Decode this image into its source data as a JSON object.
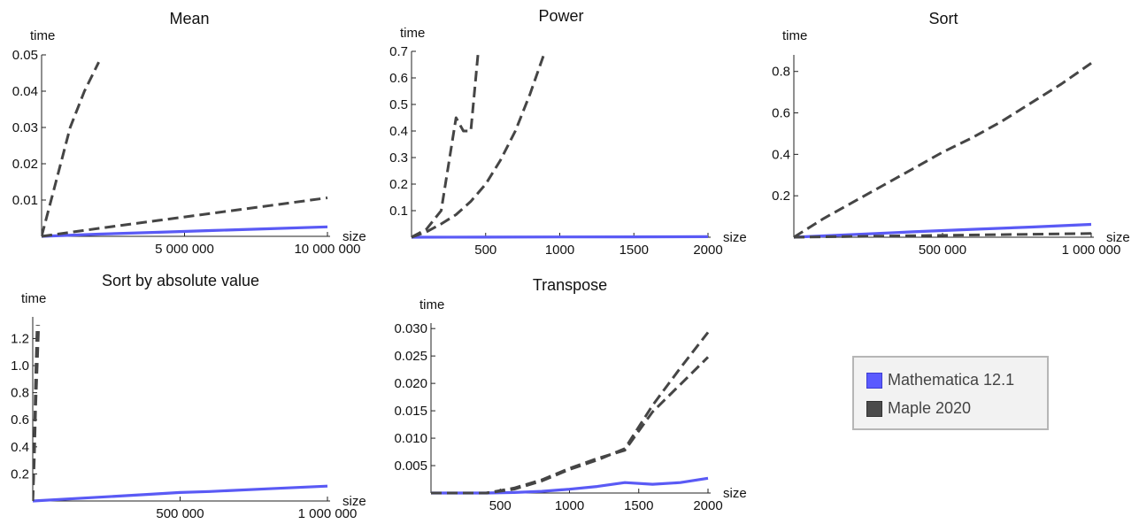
{
  "colors": {
    "mathematica": "#5a5af5",
    "maple": "#454545",
    "axis": "#222222",
    "background": "#ffffff"
  },
  "legend": {
    "items": [
      {
        "label": "Mathematica 12.1",
        "color": "#5a5af5"
      },
      {
        "label": "Maple 2020",
        "color": "#4b4b4b"
      }
    ]
  },
  "chart_data": [
    {
      "type": "line",
      "title": "Mean",
      "xlabel": "size",
      "ylabel": "time",
      "xlim": [
        0,
        10000000
      ],
      "ylim": [
        0,
        0.05
      ],
      "xticks": [
        5000000,
        10000000
      ],
      "xtick_labels": [
        "5 000 000",
        "10 000 000"
      ],
      "yticks": [
        0.01,
        0.02,
        0.03,
        0.04,
        0.05
      ],
      "ytick_labels": [
        "0.01",
        "0.02",
        "0.03",
        "0.04",
        "0.05"
      ],
      "series": [
        {
          "x": [
            0,
            2000000,
            4000000,
            6000000,
            8000000,
            10000000
          ],
          "y": [
            0,
            0.0006,
            0.0011,
            0.0016,
            0.0021,
            0.0026
          ]
        },
        {
          "x": [
            0,
            2000000,
            4000000,
            6000000,
            8000000,
            10000000
          ],
          "y": [
            0,
            0.0022,
            0.0043,
            0.0064,
            0.0085,
            0.0106
          ]
        },
        {
          "x": [
            0,
            500000,
            1000000,
            1500000,
            2000000
          ],
          "y": [
            0,
            0.015,
            0.03,
            0.04,
            0.048
          ]
        }
      ]
    },
    {
      "type": "line",
      "title": "Power",
      "xlabel": "size",
      "ylabel": "time",
      "xlim": [
        0,
        2000
      ],
      "ylim": [
        0,
        0.7
      ],
      "xticks": [
        500,
        1000,
        1500,
        2000
      ],
      "xtick_labels": [
        "500",
        "1000",
        "1500",
        "2000"
      ],
      "yticks": [
        0.1,
        0.2,
        0.3,
        0.4,
        0.5,
        0.6,
        0.7
      ],
      "ytick_labels": [
        "0.1",
        "0.2",
        "0.3",
        "0.4",
        "0.5",
        "0.6",
        "0.7"
      ],
      "series": [
        {
          "x": [
            0,
            500,
            1000,
            1500,
            2000
          ],
          "y": [
            0,
            0.0005,
            0.001,
            0.0015,
            0.002
          ]
        },
        {
          "x": [
            0,
            100,
            200,
            300,
            400,
            500,
            600,
            700,
            800,
            900
          ],
          "y": [
            0,
            0.02,
            0.05,
            0.085,
            0.135,
            0.2,
            0.29,
            0.4,
            0.54,
            0.7
          ]
        },
        {
          "x": [
            0,
            100,
            200,
            300,
            350,
            400,
            450
          ],
          "y": [
            0,
            0.03,
            0.1,
            0.45,
            0.4,
            0.4,
            0.7
          ]
        }
      ]
    },
    {
      "type": "line",
      "title": "Sort",
      "xlabel": "size",
      "ylabel": "time",
      "xlim": [
        0,
        1000000
      ],
      "ylim": [
        0,
        0.88
      ],
      "xticks": [
        500000,
        1000000
      ],
      "xtick_labels": [
        "500 000",
        "1 000 000"
      ],
      "yticks": [
        0.2,
        0.4,
        0.6,
        0.8
      ],
      "ytick_labels": [
        "0.2",
        "0.4",
        "0.6",
        "0.8"
      ],
      "series": [
        {
          "x": [
            0,
            200000,
            400000,
            600000,
            800000,
            1000000
          ],
          "y": [
            0,
            0.013,
            0.026,
            0.038,
            0.049,
            0.062
          ]
        },
        {
          "x": [
            0,
            1000000
          ],
          "y": [
            0,
            0.018
          ]
        },
        {
          "x": [
            0,
            100000,
            200000,
            300000,
            400000,
            500000,
            600000,
            700000,
            800000,
            900000,
            1000000
          ],
          "y": [
            0,
            0.09,
            0.17,
            0.25,
            0.33,
            0.41,
            0.48,
            0.56,
            0.65,
            0.74,
            0.84
          ]
        }
      ]
    },
    {
      "type": "line",
      "title": "Sort by absolute value",
      "xlabel": "size",
      "ylabel": "time",
      "xlim": [
        0,
        1000000
      ],
      "ylim": [
        0,
        1.36
      ],
      "xticks": [
        500000,
        1000000
      ],
      "xtick_labels": [
        "500 000",
        "1 000 000"
      ],
      "yticks": [
        0.2,
        0.4,
        0.6,
        0.8,
        1.0,
        1.2
      ],
      "ytick_labels": [
        "0.2",
        "0.4",
        "0.6",
        "0.8",
        "1.0",
        "1.2"
      ],
      "series": [
        {
          "x": [
            0,
            200000,
            400000,
            500000,
            600000,
            800000,
            1000000
          ],
          "y": [
            0,
            0.025,
            0.05,
            0.063,
            0.07,
            0.09,
            0.11
          ]
        },
        {
          "x": [
            0,
            5000,
            10000,
            15000,
            20000
          ],
          "y": [
            0,
            0.3,
            0.7,
            1.0,
            1.3
          ]
        },
        {
          "x": [
            0,
            5000,
            10000,
            15000
          ],
          "y": [
            0,
            0.4,
            0.9,
            1.3
          ]
        }
      ]
    },
    {
      "type": "line",
      "title": "Transpose",
      "xlabel": "size",
      "ylabel": "time",
      "xlim": [
        0,
        2000
      ],
      "ylim": [
        0,
        0.031
      ],
      "xticks": [
        500,
        1000,
        1500,
        2000
      ],
      "xtick_labels": [
        "500",
        "1000",
        "1500",
        "2000"
      ],
      "yticks": [
        0.005,
        0.01,
        0.015,
        0.02,
        0.025,
        0.03
      ],
      "ytick_labels": [
        "0.005",
        "0.010",
        "0.015",
        "0.020",
        "0.025",
        "0.030"
      ],
      "series": [
        {
          "x": [
            0,
            200,
            400,
            600,
            800,
            1000,
            1200,
            1400,
            1600,
            1800,
            2000
          ],
          "y": [
            0,
            0,
            0,
            0.0001,
            0.0003,
            0.0007,
            0.0012,
            0.0019,
            0.0016,
            0.0019,
            0.0027
          ]
        },
        {
          "x": [
            0,
            200,
            400,
            600,
            800,
            1000,
            1200,
            1400,
            1600,
            1800,
            2000
          ],
          "y": [
            0,
            0,
            0,
            0.0009,
            0.0024,
            0.0045,
            0.0063,
            0.0078,
            0.0148,
            0.0198,
            0.0248
          ]
        },
        {
          "x": [
            0,
            200,
            400,
            600,
            800,
            1000,
            1200,
            1400,
            1600,
            1800,
            2000
          ],
          "y": [
            0,
            0,
            0,
            0.0007,
            0.0022,
            0.0043,
            0.006,
            0.0081,
            0.016,
            0.0228,
            0.0293
          ]
        }
      ]
    }
  ]
}
